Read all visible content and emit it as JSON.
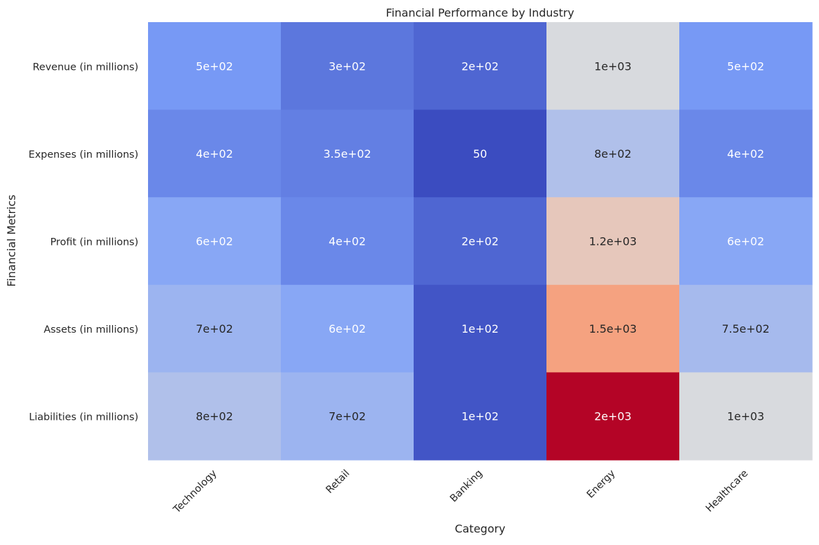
{
  "chart_data": {
    "type": "heatmap",
    "title": "Financial Performance by Industry",
    "xlabel": "Category",
    "ylabel": "Financial Metrics",
    "colormap": "coolwarm",
    "vmin": 50,
    "vmax": 2000,
    "x_categories": [
      "Technology",
      "Retail",
      "Banking",
      "Energy",
      "Healthcare"
    ],
    "y_categories": [
      "Revenue (in millions)",
      "Expenses (in millions)",
      "Profit (in millions)",
      "Assets (in millions)",
      "Liabilities (in millions)"
    ],
    "values": [
      [
        500,
        300,
        200,
        1000,
        500
      ],
      [
        400,
        350,
        50,
        800,
        400
      ],
      [
        600,
        400,
        200,
        1200,
        600
      ],
      [
        700,
        600,
        100,
        1500,
        750
      ],
      [
        800,
        700,
        100,
        2000,
        1000
      ]
    ],
    "cell_labels": [
      [
        "5e+02",
        "3e+02",
        "2e+02",
        "1e+03",
        "5e+02"
      ],
      [
        "4e+02",
        "3.5e+02",
        "50",
        "8e+02",
        "4e+02"
      ],
      [
        "6e+02",
        "4e+02",
        "2e+02",
        "1.2e+03",
        "6e+02"
      ],
      [
        "7e+02",
        "6e+02",
        "1e+02",
        "1.5e+03",
        "7.5e+02"
      ],
      [
        "8e+02",
        "7e+02",
        "1e+02",
        "2e+03",
        "1e+03"
      ]
    ],
    "colorbar": false,
    "grid": false
  }
}
